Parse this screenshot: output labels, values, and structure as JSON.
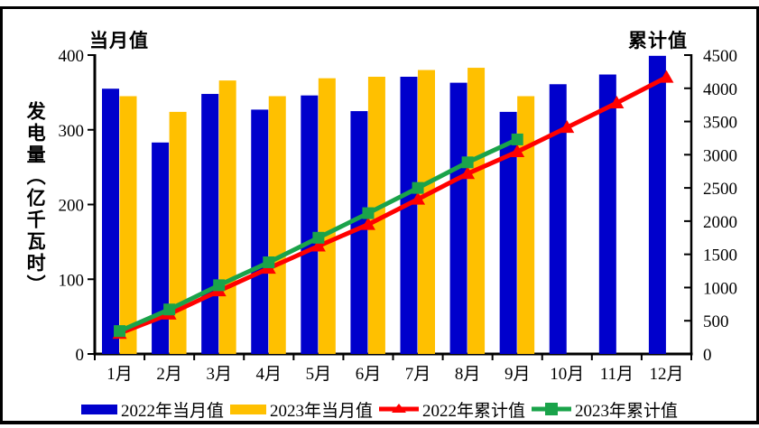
{
  "chart_data": {
    "type": "bar",
    "subtype": "combo-bar-line-dual-axis",
    "categories": [
      "1月",
      "2月",
      "3月",
      "4月",
      "5月",
      "6月",
      "7月",
      "8月",
      "9月",
      "10月",
      "11月",
      "12月"
    ],
    "left_axis": {
      "title": "当月值",
      "label": "发电量（亿千瓦时）",
      "min": 0,
      "max": 400,
      "ticks": [
        0,
        100,
        200,
        300,
        400
      ]
    },
    "right_axis": {
      "title": "累计值",
      "min": 0,
      "max": 4500,
      "ticks": [
        0,
        500,
        1000,
        1500,
        2000,
        2500,
        3000,
        3500,
        4000,
        4500
      ]
    },
    "series": [
      {
        "name": "2022年当月值",
        "type": "bar",
        "axis": "left",
        "color": "#0000CC",
        "values": [
          355,
          283,
          348,
          327,
          346,
          325,
          371,
          363,
          324,
          361,
          374,
          399
        ]
      },
      {
        "name": "2023年当月值",
        "type": "bar",
        "axis": "left",
        "color": "#FFC000",
        "values": [
          345,
          324,
          366,
          345,
          369,
          371,
          380,
          383,
          345
        ]
      },
      {
        "name": "2022年累计值",
        "type": "line",
        "marker": "triangle",
        "axis": "right",
        "color": "#FF0000",
        "values": [
          310,
          600,
          950,
          1290,
          1625,
          1950,
          2330,
          2715,
          3045,
          3410,
          3780,
          4165
        ]
      },
      {
        "name": "2023年累计值",
        "type": "line",
        "marker": "square",
        "axis": "right",
        "color": "#1AA34A",
        "values": [
          345,
          670,
          1035,
          1380,
          1750,
          2120,
          2500,
          2885,
          3230
        ]
      }
    ],
    "legend_position": "bottom",
    "grid": false,
    "axis_color": "#000000"
  }
}
